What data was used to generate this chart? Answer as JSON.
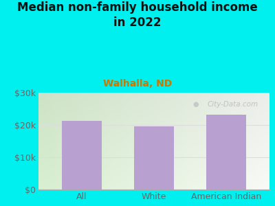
{
  "title": "Median non-family household income\nin 2022",
  "subtitle": "Walhalla, ND",
  "categories": [
    "All",
    "White",
    "American Indian"
  ],
  "values": [
    21200,
    19600,
    23200
  ],
  "bar_color": "#b8a0d0",
  "background_outer": "#00f0f0",
  "background_inner_left": "#d8efd0",
  "background_inner_right": "#f0f5ee",
  "title_fontsize": 12,
  "subtitle_fontsize": 10,
  "tick_label_fontsize": 9,
  "ytick_labels": [
    "$0",
    "$10k",
    "$20k",
    "$30k"
  ],
  "ytick_values": [
    0,
    10000,
    20000,
    30000
  ],
  "ylim": [
    0,
    30000
  ],
  "tick_color": "#666666",
  "subtitle_color": "#cc7700",
  "watermark_text": "City-Data.com",
  "watermark_color": "#bbbbbb",
  "grid_color": "#dddddd",
  "title_color": "#111111"
}
